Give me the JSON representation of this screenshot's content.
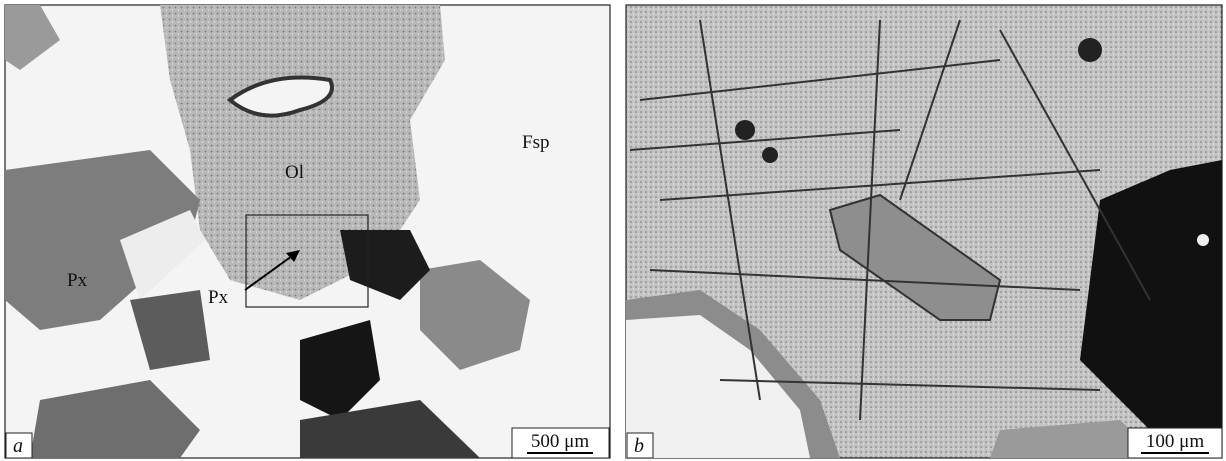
{
  "panels": [
    {
      "label": "a",
      "scale_bar": "500 μm",
      "annotations": [
        "Fsp",
        "Ol",
        "Px",
        "Px"
      ]
    },
    {
      "label": "b",
      "scale_bar": "100 μm"
    }
  ]
}
